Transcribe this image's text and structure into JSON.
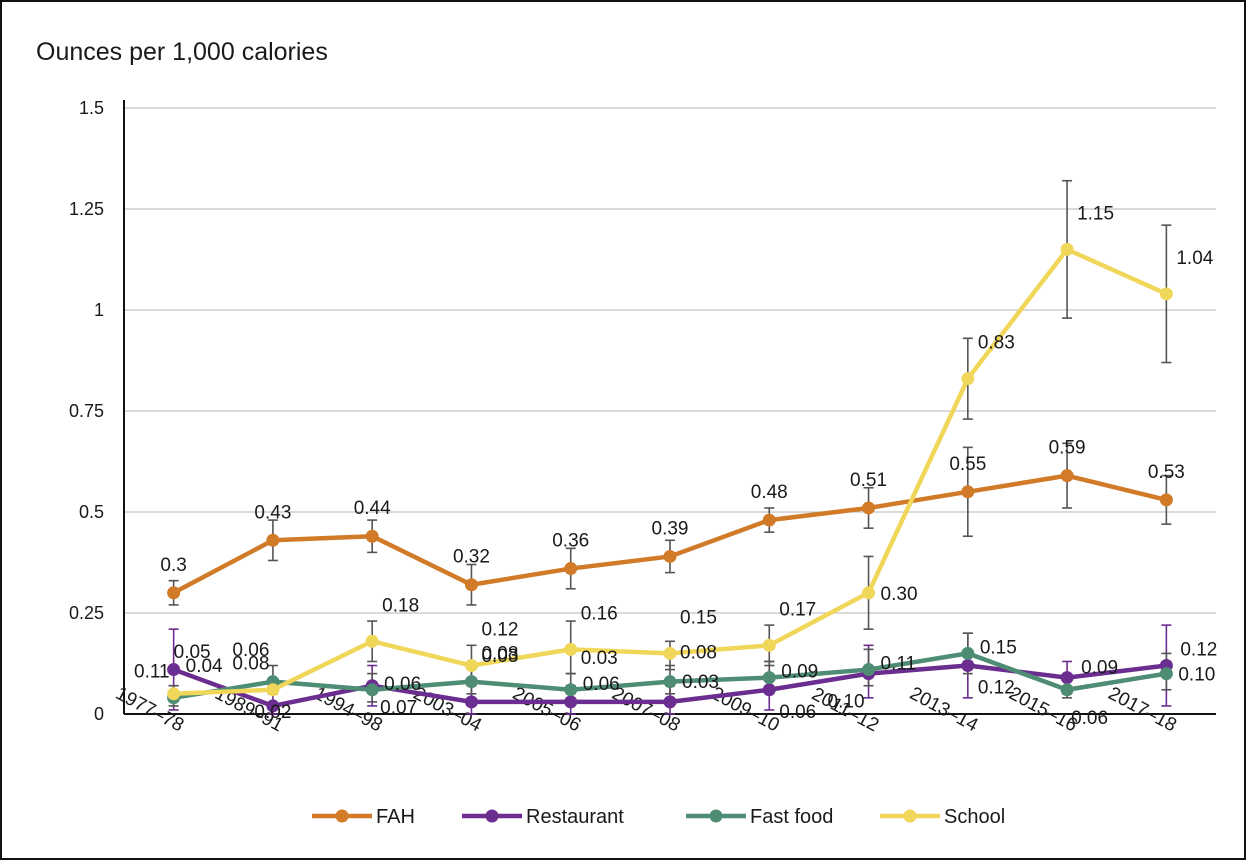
{
  "chart_data": {
    "type": "line",
    "title": "Ounces per 1,000 calories",
    "xlabel": "",
    "ylabel": "",
    "ylim": [
      0,
      1.5
    ],
    "yticks": [
      0,
      0.25,
      0.5,
      0.75,
      1,
      1.25,
      1.5
    ],
    "ytick_labels": [
      "0",
      "0.25",
      "0.5",
      "0.75",
      "1",
      "1.25",
      "1.5"
    ],
    "categories": [
      "1977–78",
      "1989–91",
      "1994–98",
      "2003–04",
      "2005–06",
      "2007–08",
      "2009–10",
      "2011–12",
      "2013–14",
      "2015–16",
      "2017–18"
    ],
    "grid": "horizontal",
    "legend": "bottom",
    "series": [
      {
        "name": "FAH",
        "color": "#d17a28",
        "values": [
          0.3,
          0.43,
          0.44,
          0.32,
          0.36,
          0.39,
          0.48,
          0.51,
          0.55,
          0.59,
          0.53
        ],
        "labels": [
          "0.3",
          "0.43",
          "0.44",
          "0.32",
          "0.36",
          "0.39",
          "0.48",
          "0.51",
          "0.55",
          "0.59",
          "0.53"
        ],
        "error_low": [
          0.27,
          0.38,
          0.4,
          0.27,
          0.31,
          0.35,
          0.45,
          0.46,
          0.44,
          0.51,
          0.47
        ],
        "error_high": [
          0.33,
          0.48,
          0.48,
          0.37,
          0.41,
          0.43,
          0.51,
          0.56,
          0.66,
          0.67,
          0.59
        ]
      },
      {
        "name": "Restaurant",
        "color": "#6b2d8f",
        "values": [
          0.11,
          0.02,
          0.07,
          0.03,
          0.03,
          0.03,
          0.06,
          0.1,
          0.12,
          0.09,
          0.12
        ],
        "labels": [
          "0.11",
          "0.02",
          "0.07",
          "0.03",
          "0.03",
          "0.03",
          "0.06",
          "0.10",
          "0.12",
          "0.09",
          "0.12"
        ],
        "error_low": [
          0.01,
          0.0,
          0.02,
          0.0,
          0.0,
          0.0,
          0.01,
          0.04,
          0.04,
          0.05,
          0.02
        ],
        "error_high": [
          0.21,
          0.05,
          0.12,
          0.07,
          0.07,
          0.07,
          0.13,
          0.17,
          0.2,
          0.13,
          0.22
        ]
      },
      {
        "name": "Fast food",
        "color": "#4e8c74",
        "values": [
          0.04,
          0.08,
          0.06,
          0.08,
          0.06,
          0.08,
          0.09,
          0.11,
          0.15,
          0.06,
          0.1
        ],
        "labels": [
          "0.04",
          "0.08",
          "0.06",
          "0.08",
          "0.06",
          "0.08",
          "0.09",
          "0.11",
          "0.15",
          "0.06",
          "0.10"
        ],
        "error_low": [
          0.02,
          0.05,
          0.03,
          0.05,
          0.03,
          0.05,
          0.06,
          0.07,
          0.1,
          0.04,
          0.06
        ],
        "error_high": [
          0.07,
          0.12,
          0.1,
          0.12,
          0.1,
          0.12,
          0.13,
          0.16,
          0.2,
          0.09,
          0.15
        ]
      },
      {
        "name": "School",
        "color": "#f0d75a",
        "values": [
          0.05,
          0.06,
          0.18,
          0.12,
          0.16,
          0.15,
          0.17,
          0.3,
          0.83,
          1.15,
          1.04
        ],
        "labels": [
          "0.05",
          "0.06",
          "0.18",
          "0.12",
          "0.16",
          "0.15",
          "0.17",
          "0.30",
          "0.83",
          "1.15",
          "1.04"
        ],
        "error_low": [
          0.04,
          0.05,
          0.13,
          0.07,
          0.1,
          0.11,
          0.12,
          0.21,
          0.73,
          0.98,
          0.87
        ],
        "error_high": [
          0.07,
          0.08,
          0.23,
          0.17,
          0.23,
          0.18,
          0.22,
          0.39,
          0.93,
          1.32,
          1.21
        ]
      }
    ]
  }
}
